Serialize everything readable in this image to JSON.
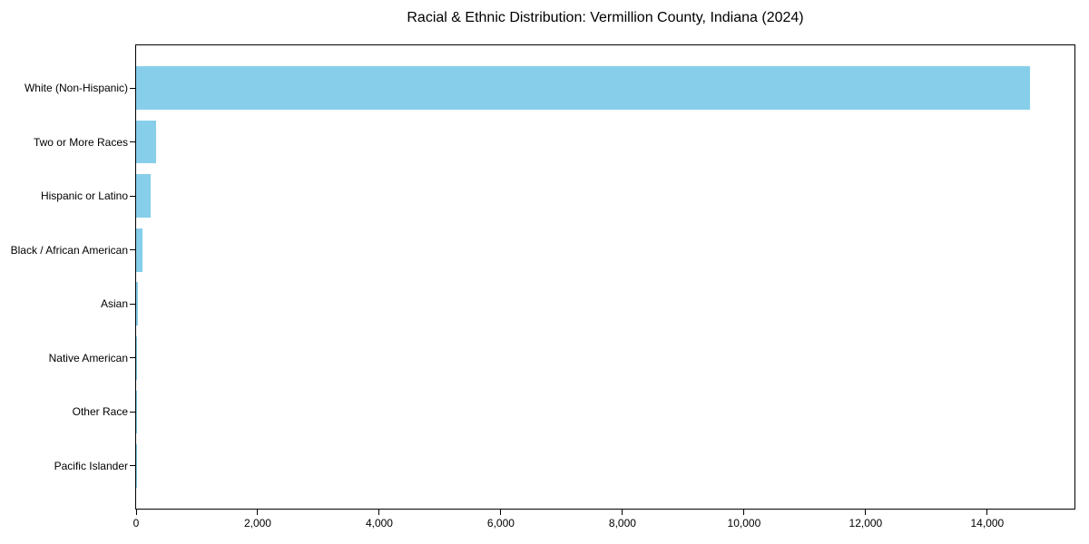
{
  "chart_data": {
    "type": "bar",
    "orientation": "horizontal",
    "title": "Racial & Ethnic Distribution: Vermillion County, Indiana (2024)",
    "categories": [
      "White (Non-Hispanic)",
      "Two or More Races",
      "Hispanic or Latino",
      "Black / African American",
      "Asian",
      "Native American",
      "Other Race",
      "Pacific Islander"
    ],
    "values": [
      14700,
      335,
      240,
      110,
      25,
      20,
      10,
      4
    ],
    "bar_color": "#87CEEB",
    "axis_color": "#000000",
    "text_color": "#000000",
    "background_color": "#ffffff",
    "xlim": [
      0,
      15435
    ],
    "x_ticks": [
      0,
      2000,
      4000,
      6000,
      8000,
      10000,
      12000,
      14000
    ],
    "x_tick_labels": [
      "0",
      "2,000",
      "4,000",
      "6,000",
      "8,000",
      "10,000",
      "12,000",
      "14,000"
    ],
    "xlabel": "",
    "ylabel": "",
    "grid": false,
    "legend": "none"
  }
}
